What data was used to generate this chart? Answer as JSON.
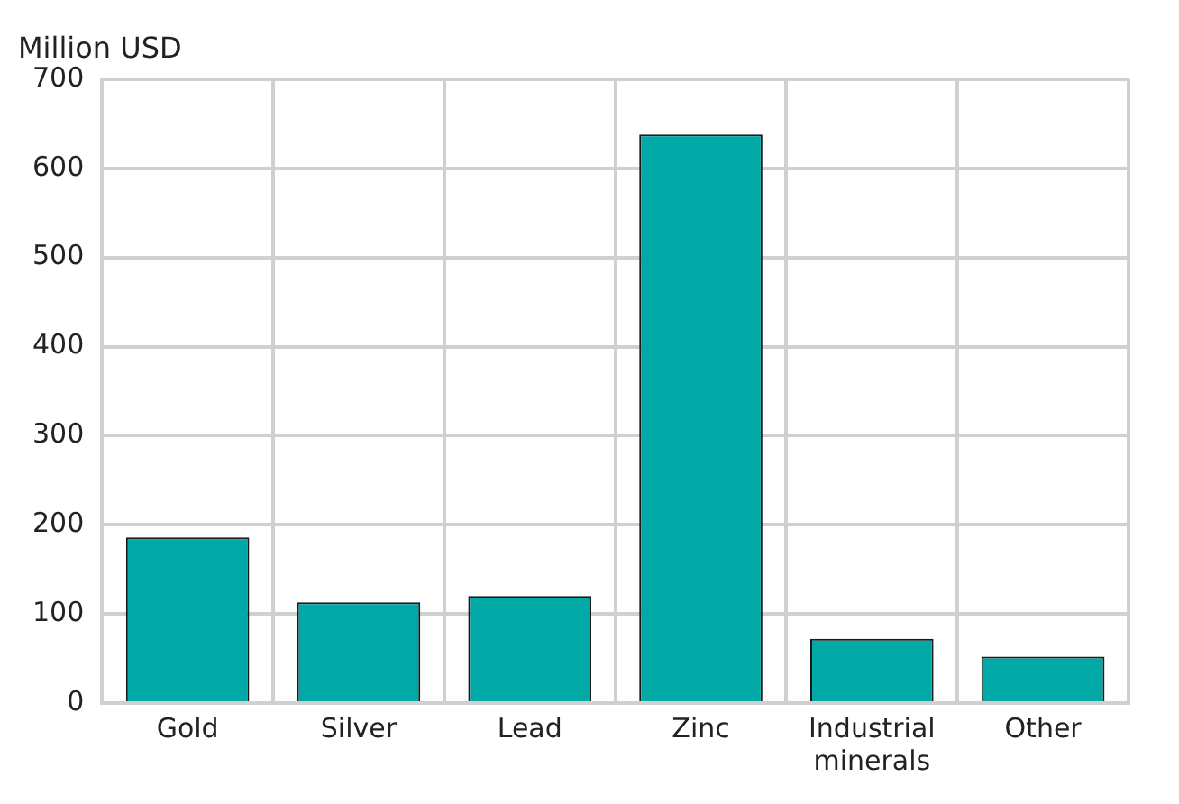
{
  "chart_data": {
    "type": "bar",
    "ylabel": "Million USD",
    "categories": [
      "Gold",
      "Silver",
      "Lead",
      "Zinc",
      "Industrial minerals",
      "Other"
    ],
    "values": [
      186,
      113,
      120,
      638,
      72,
      52
    ],
    "color": "#00a9a6",
    "ylim": [
      0,
      700
    ],
    "yticks": [
      0,
      100,
      200,
      300,
      400,
      500,
      600,
      700
    ],
    "grid": true,
    "legend": false
  }
}
